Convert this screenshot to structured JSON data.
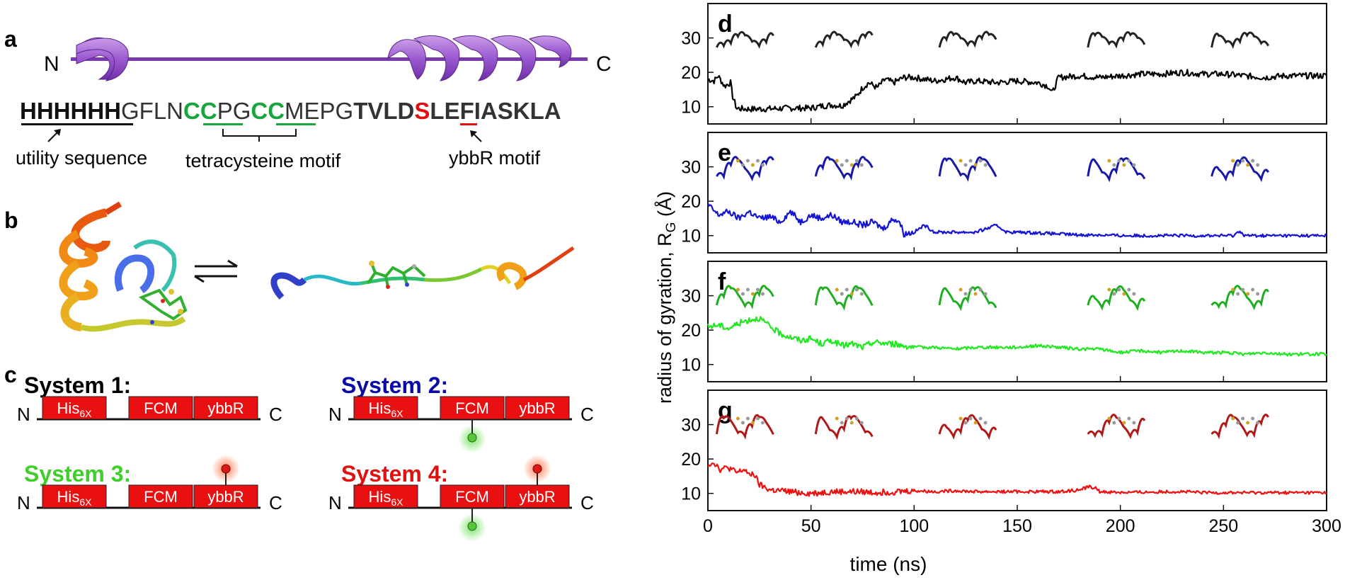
{
  "panels": {
    "a": {
      "letter": "a",
      "n_terminus": "N",
      "c_terminus": "C",
      "seq": {
        "his": "HHHHHH",
        "gfln": "GFLN",
        "cc1": "CC",
        "pg": "PG",
        "cc2": "CC",
        "mepg": "MEPG",
        "tvld": "TVLD",
        "s": "S",
        "tail": "LEFIASKLA"
      },
      "label_utility": "utility sequence",
      "label_tetracysteine": "tetracysteine motif",
      "label_ybbr": "ybbR motif"
    },
    "b": {
      "letter": "b",
      "arrow_symbol": "⇄"
    },
    "c": {
      "letter": "c",
      "systems": [
        {
          "title": "System 1:",
          "color": "#000000",
          "n": "N",
          "c": "C",
          "box1": "His",
          "box1_sub": "6X",
          "box2": "FCM",
          "box3": "ybbR",
          "green_label": false,
          "red_label": false
        },
        {
          "title": "System 2:",
          "color": "#0a0aa8",
          "n": "N",
          "c": "C",
          "box1": "His",
          "box1_sub": "6X",
          "box2": "FCM",
          "box3": "ybbR",
          "green_label": true,
          "red_label": false
        },
        {
          "title": "System 3:",
          "color": "#3fcf2a",
          "n": "N",
          "c": "C",
          "box1": "His",
          "box1_sub": "6X",
          "box2": "FCM",
          "box3": "ybbR",
          "green_label": false,
          "red_label": true
        },
        {
          "title": "System 4:",
          "color": "#e01010",
          "n": "N",
          "c": "C",
          "box1": "His",
          "box1_sub": "6X",
          "box2": "FCM",
          "box3": "ybbR",
          "green_label": true,
          "red_label": true
        }
      ]
    }
  },
  "chart_data": {
    "type": "line",
    "xlabel": "time (ns)",
    "ylabel": "radius of gyration, R",
    "ylabel_sub": "G",
    "ylabel_unit": " (Å)",
    "xlim": [
      0,
      300
    ],
    "ylim": [
      5,
      40
    ],
    "xticks": [
      0,
      50,
      100,
      150,
      200,
      250,
      300
    ],
    "yticks": [
      10,
      20,
      30
    ],
    "series": [
      {
        "letter": "d",
        "name": "System 1",
        "color": "#000000",
        "points": [
          [
            0,
            18
          ],
          [
            3,
            17.5
          ],
          [
            5,
            19
          ],
          [
            8,
            16
          ],
          [
            11,
            17
          ],
          [
            12,
            13
          ],
          [
            14,
            9.5
          ],
          [
            20,
            9.3
          ],
          [
            30,
            9.4
          ],
          [
            40,
            9.6
          ],
          [
            50,
            9.6
          ],
          [
            55,
            10.2
          ],
          [
            60,
            10.5
          ],
          [
            65,
            10.3
          ],
          [
            68,
            11.5
          ],
          [
            72,
            13
          ],
          [
            75,
            15.5
          ],
          [
            78,
            17
          ],
          [
            82,
            15.5
          ],
          [
            86,
            18
          ],
          [
            90,
            17
          ],
          [
            95,
            18.5
          ],
          [
            100,
            18.5
          ],
          [
            110,
            17.5
          ],
          [
            120,
            18.5
          ],
          [
            125,
            17
          ],
          [
            130,
            17.5
          ],
          [
            140,
            17
          ],
          [
            150,
            17.5
          ],
          [
            160,
            17
          ],
          [
            165,
            16
          ],
          [
            167,
            14
          ],
          [
            170,
            18.5
          ],
          [
            180,
            19
          ],
          [
            190,
            18.5
          ],
          [
            200,
            19
          ],
          [
            210,
            19.5
          ],
          [
            220,
            19.5
          ],
          [
            230,
            20
          ],
          [
            240,
            19.5
          ],
          [
            250,
            19.5
          ],
          [
            260,
            19
          ],
          [
            270,
            18.5
          ],
          [
            280,
            19
          ],
          [
            290,
            19
          ],
          [
            300,
            19
          ]
        ]
      },
      {
        "letter": "e",
        "name": "System 2",
        "color": "#1414d2",
        "points": [
          [
            0,
            19
          ],
          [
            5,
            16
          ],
          [
            10,
            17
          ],
          [
            15,
            15
          ],
          [
            20,
            17
          ],
          [
            25,
            15
          ],
          [
            30,
            15.5
          ],
          [
            35,
            14
          ],
          [
            40,
            17
          ],
          [
            45,
            14
          ],
          [
            50,
            16
          ],
          [
            55,
            15
          ],
          [
            60,
            16
          ],
          [
            65,
            14
          ],
          [
            70,
            14
          ],
          [
            75,
            13
          ],
          [
            80,
            14
          ],
          [
            85,
            12
          ],
          [
            90,
            15
          ],
          [
            93,
            14
          ],
          [
            95,
            10.5
          ],
          [
            100,
            11
          ],
          [
            105,
            13
          ],
          [
            110,
            11
          ],
          [
            120,
            11
          ],
          [
            130,
            11
          ],
          [
            140,
            13
          ],
          [
            145,
            11
          ],
          [
            150,
            11
          ],
          [
            160,
            10.8
          ],
          [
            170,
            10.5
          ],
          [
            180,
            10.2
          ],
          [
            190,
            10.2
          ],
          [
            200,
            10
          ],
          [
            210,
            10
          ],
          [
            220,
            10
          ],
          [
            230,
            10
          ],
          [
            240,
            10
          ],
          [
            250,
            10
          ],
          [
            255,
            10
          ],
          [
            258,
            11.5
          ],
          [
            260,
            10
          ],
          [
            270,
            10
          ],
          [
            280,
            10
          ],
          [
            290,
            10
          ],
          [
            300,
            10
          ]
        ]
      },
      {
        "letter": "f",
        "name": "System 3",
        "color": "#22e822",
        "points": [
          [
            0,
            21
          ],
          [
            5,
            21.5
          ],
          [
            10,
            20.5
          ],
          [
            15,
            22
          ],
          [
            20,
            23
          ],
          [
            25,
            23.5
          ],
          [
            30,
            21
          ],
          [
            35,
            19
          ],
          [
            40,
            18
          ],
          [
            45,
            17
          ],
          [
            50,
            17.5
          ],
          [
            55,
            16
          ],
          [
            60,
            17
          ],
          [
            65,
            15.5
          ],
          [
            70,
            16
          ],
          [
            75,
            15
          ],
          [
            80,
            16.5
          ],
          [
            90,
            16
          ],
          [
            100,
            15
          ],
          [
            110,
            15
          ],
          [
            120,
            14.5
          ],
          [
            130,
            15
          ],
          [
            140,
            15
          ],
          [
            150,
            15
          ],
          [
            160,
            15.5
          ],
          [
            170,
            15
          ],
          [
            180,
            14.5
          ],
          [
            190,
            14.5
          ],
          [
            200,
            13.5
          ],
          [
            210,
            14
          ],
          [
            220,
            13.5
          ],
          [
            230,
            14
          ],
          [
            240,
            13.5
          ],
          [
            250,
            13.5
          ],
          [
            260,
            13
          ],
          [
            270,
            13.5
          ],
          [
            280,
            13
          ],
          [
            290,
            13
          ],
          [
            300,
            13
          ]
        ]
      },
      {
        "letter": "g",
        "name": "System 4",
        "color": "#ee1111",
        "points": [
          [
            0,
            18.5
          ],
          [
            3,
            19
          ],
          [
            6,
            17
          ],
          [
            10,
            17.5
          ],
          [
            14,
            16
          ],
          [
            18,
            17
          ],
          [
            20,
            15
          ],
          [
            22,
            16
          ],
          [
            25,
            12.5
          ],
          [
            30,
            11
          ],
          [
            40,
            10.5
          ],
          [
            50,
            10
          ],
          [
            60,
            10.5
          ],
          [
            70,
            10.5
          ],
          [
            80,
            10.3
          ],
          [
            90,
            10.5
          ],
          [
            100,
            10.8
          ],
          [
            110,
            10.5
          ],
          [
            120,
            10.8
          ],
          [
            130,
            10.5
          ],
          [
            140,
            10.5
          ],
          [
            150,
            10.5
          ],
          [
            160,
            10.5
          ],
          [
            170,
            10.5
          ],
          [
            180,
            11
          ],
          [
            185,
            12
          ],
          [
            188,
            11.5
          ],
          [
            190,
            10.5
          ],
          [
            200,
            10.3
          ],
          [
            210,
            10.3
          ],
          [
            220,
            10.5
          ],
          [
            230,
            10.5
          ],
          [
            240,
            10.2
          ],
          [
            250,
            10.2
          ],
          [
            260,
            10.2
          ],
          [
            270,
            10.2
          ],
          [
            280,
            10.2
          ],
          [
            290,
            10.2
          ],
          [
            300,
            10.2
          ]
        ]
      }
    ]
  }
}
